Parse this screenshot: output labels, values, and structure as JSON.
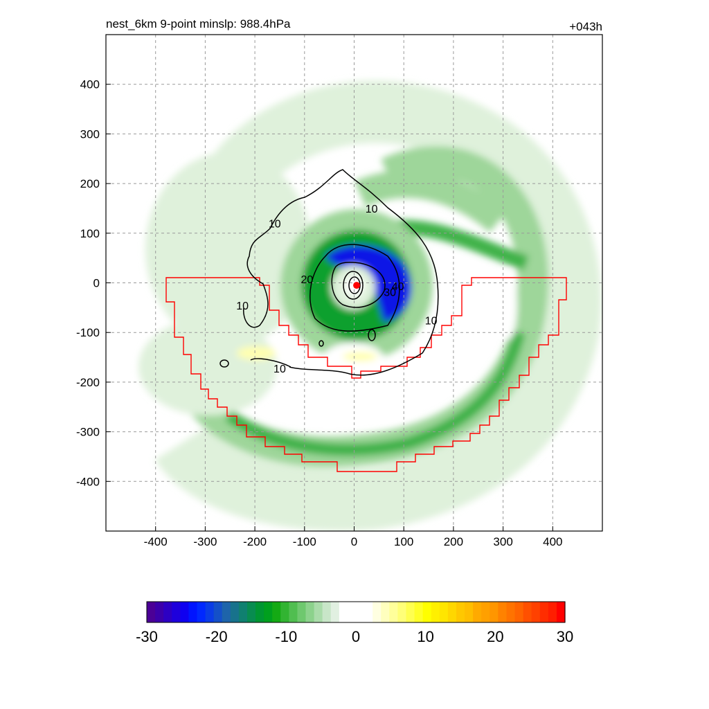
{
  "chart_data": {
    "type": "heatmap",
    "title": "nest_6km  9-point minslp: 988.4hPa",
    "time_label": "+043h",
    "xlabel": "",
    "ylabel": "",
    "xlim": [
      -500,
      500
    ],
    "ylim": [
      -500,
      500
    ],
    "grid": true,
    "xticks": [
      -400,
      -300,
      -200,
      -100,
      0,
      100,
      200,
      300,
      400
    ],
    "yticks": [
      400,
      300,
      200,
      100,
      0,
      -100,
      -200,
      -300,
      -400
    ],
    "contour_levels": [
      10,
      20,
      30
    ],
    "contour_labels": [
      {
        "text": "10",
        "x": -160,
        "y": 120
      },
      {
        "text": "10",
        "x": 35,
        "y": 150
      },
      {
        "text": "10",
        "x": 155,
        "y": -75
      },
      {
        "text": "10",
        "x": -225,
        "y": -45
      },
      {
        "text": "10",
        "x": -150,
        "y": -172
      },
      {
        "text": "20",
        "x": -95,
        "y": 8
      },
      {
        "text": "30",
        "x": 72,
        "y": -18
      },
      {
        "text": "40",
        "x": 88,
        "y": -6
      }
    ],
    "center_marker": {
      "x": 5,
      "y": -5,
      "color": "#ff0000"
    },
    "colorbar": {
      "min": -30,
      "max": 30,
      "ticks": [
        -30,
        -20,
        -10,
        0,
        10,
        20,
        30
      ],
      "colors": [
        "#4b0096",
        "#3c00aa",
        "#2d00c3",
        "#1e00dc",
        "#0f00f0",
        "#0014ff",
        "#0028ff",
        "#0a3ce6",
        "#1450c8",
        "#1e64aa",
        "#18728c",
        "#108070",
        "#088c50",
        "#009632",
        "#00a01e",
        "#14aa14",
        "#32b432",
        "#50be50",
        "#6ec86e",
        "#8cd28c",
        "#aadcaa",
        "#c8e6c8",
        "#e1f0e1",
        "#ffffff",
        "#ffffff",
        "#ffffff",
        "#ffffff",
        "#ffffe1",
        "#ffffbe",
        "#ffff9b",
        "#ffff78",
        "#ffff50",
        "#ffff28",
        "#ffff00",
        "#fff000",
        "#ffe600",
        "#ffd700",
        "#ffc800",
        "#ffbe00",
        "#ffaa00",
        "#ffa000",
        "#ff9600",
        "#ff8200",
        "#ff7300",
        "#ff6400",
        "#ff5000",
        "#ff4100",
        "#ff2d00",
        "#ff1e00",
        "#ff0000"
      ]
    },
    "colors": {
      "green_light": "#dff1db",
      "green_mid": "#9ed69a",
      "green_dark": "#3fb24a",
      "green_deep": "#0ea02d",
      "blue": "#0a14e6",
      "yellow": "#ffffb0",
      "boundary": "#ff0000"
    }
  }
}
